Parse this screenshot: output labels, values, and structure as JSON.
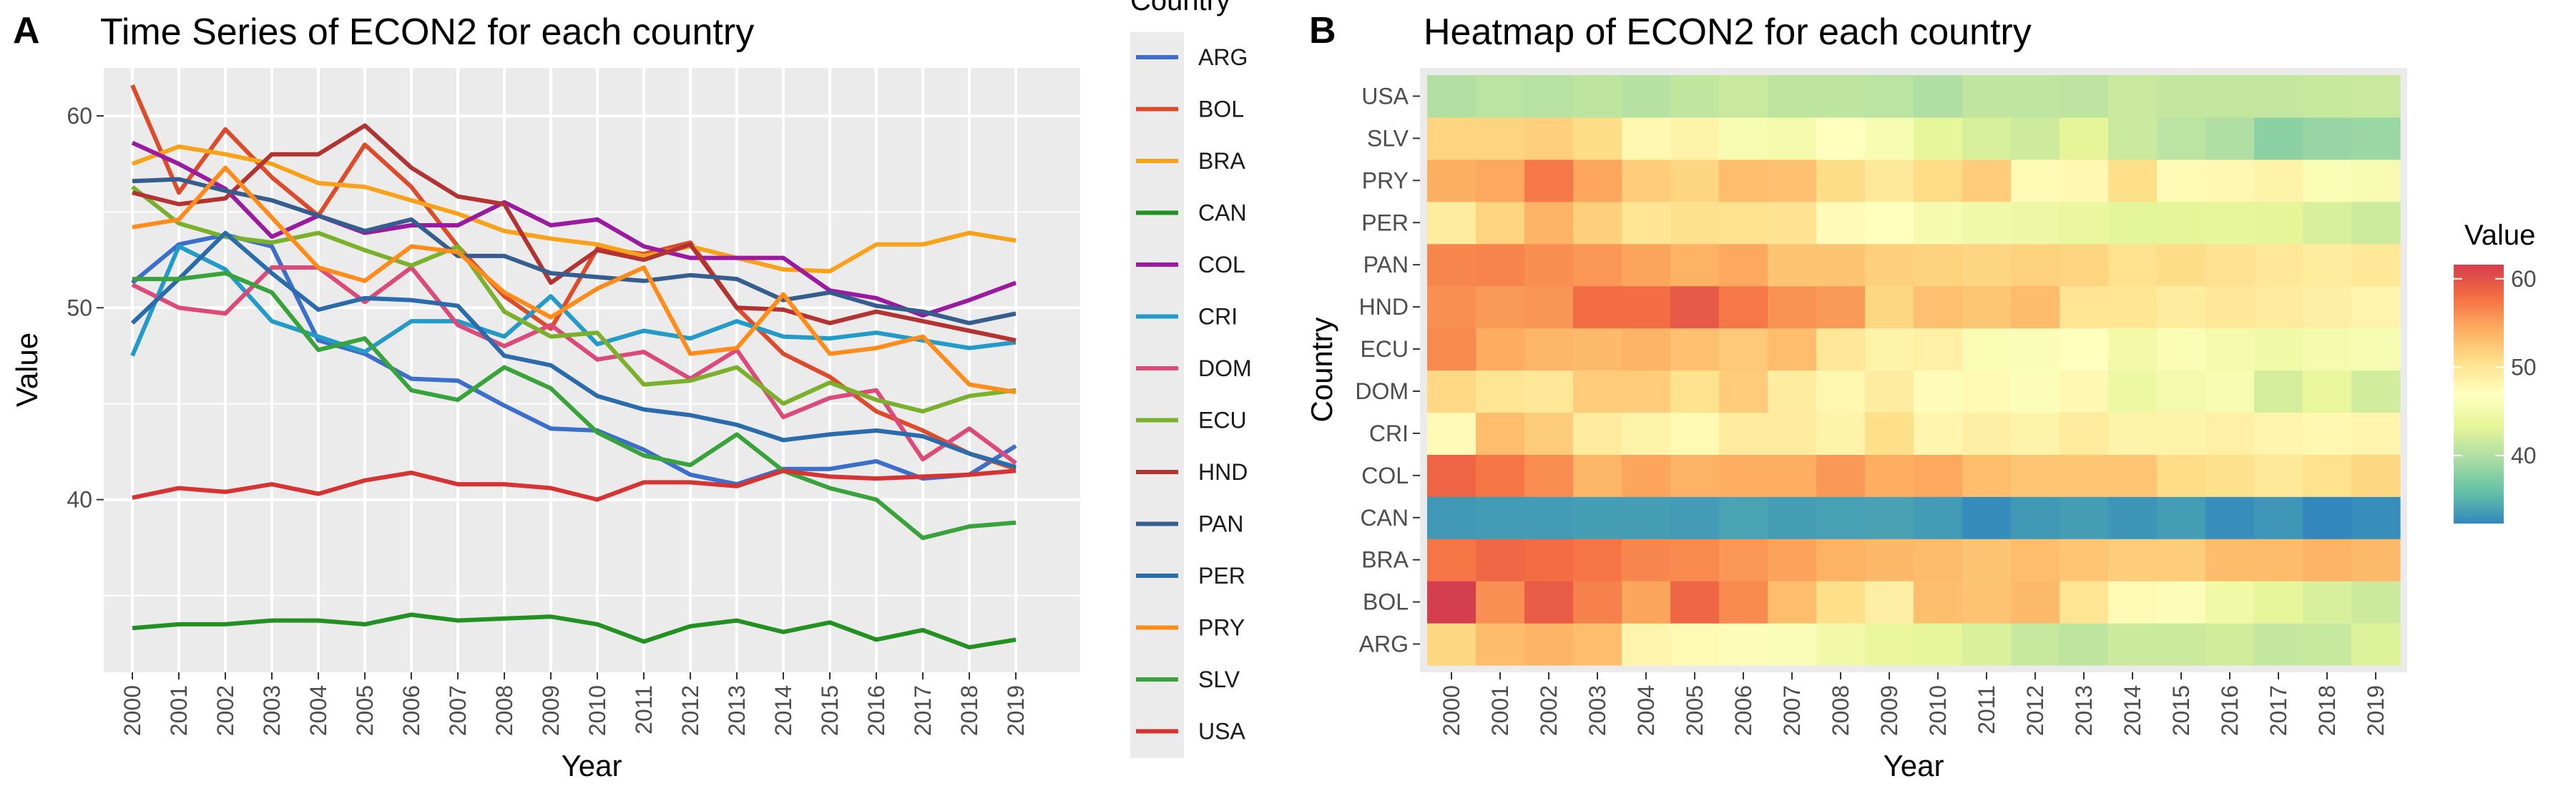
{
  "chart_data": [
    {
      "panel_tag": "A",
      "type": "line",
      "title": "Time Series of ECON2 for each country",
      "xlabel": "Year",
      "ylabel": "Value",
      "x": [
        "2000",
        "2001",
        "2002",
        "2003",
        "2004",
        "2005",
        "2006",
        "2007",
        "2008",
        "2009",
        "2010",
        "2011",
        "2012",
        "2013",
        "2014",
        "2015",
        "2016",
        "2017",
        "2018",
        "2019"
      ],
      "yticks": [
        40,
        50,
        60
      ],
      "ylim": [
        31,
        62.5
      ],
      "grid": true,
      "legend": {
        "title": "Country",
        "placement": "right"
      },
      "series": [
        {
          "name": "ARG",
          "color": "#3b6fcb",
          "values": [
            51.3,
            53.3,
            53.8,
            53.2,
            48.3,
            47.6,
            46.3,
            46.2,
            44.9,
            43.7,
            43.6,
            42.6,
            41.3,
            40.8,
            41.6,
            41.6,
            42.0,
            41.1,
            41.3,
            42.8
          ]
        },
        {
          "name": "BOL",
          "color": "#dc4b2a",
          "values": [
            61.6,
            56.0,
            59.3,
            56.8,
            54.8,
            58.5,
            56.3,
            53.2,
            50.6,
            48.9,
            53.1,
            52.8,
            53.4,
            50.0,
            47.6,
            46.4,
            44.6,
            43.6,
            42.4,
            41.6
          ]
        },
        {
          "name": "BRA",
          "color": "#f8a21a",
          "values": [
            57.5,
            58.4,
            58.0,
            57.5,
            56.5,
            56.3,
            55.6,
            54.9,
            54.0,
            53.6,
            53.3,
            52.7,
            53.2,
            52.6,
            52.0,
            51.9,
            53.3,
            53.3,
            53.9,
            53.5
          ]
        },
        {
          "name": "CAN",
          "color": "#229122",
          "values": [
            33.3,
            33.5,
            33.5,
            33.7,
            33.7,
            33.5,
            34.0,
            33.7,
            33.8,
            33.9,
            33.5,
            32.6,
            33.4,
            33.7,
            33.1,
            33.6,
            32.7,
            33.2,
            32.3,
            32.7
          ]
        },
        {
          "name": "COL",
          "color": "#9a1aa0",
          "values": [
            58.6,
            57.5,
            56.2,
            53.7,
            54.8,
            53.9,
            54.3,
            54.3,
            55.5,
            54.3,
            54.6,
            53.2,
            52.6,
            52.6,
            52.6,
            50.9,
            50.5,
            49.6,
            50.4,
            51.3
          ]
        },
        {
          "name": "CRI",
          "color": "#229bc9",
          "values": [
            47.5,
            53.2,
            52.0,
            49.3,
            48.5,
            47.7,
            49.3,
            49.3,
            48.5,
            50.6,
            48.1,
            48.8,
            48.4,
            49.3,
            48.5,
            48.4,
            48.7,
            48.3,
            47.9,
            48.2
          ]
        },
        {
          "name": "DOM",
          "color": "#dc4a7a",
          "values": [
            51.2,
            50.0,
            49.7,
            52.1,
            52.1,
            50.3,
            52.1,
            49.1,
            48.0,
            49.1,
            47.3,
            47.7,
            46.3,
            47.8,
            44.3,
            45.3,
            45.7,
            42.1,
            43.7,
            41.9
          ]
        },
        {
          "name": "ECU",
          "color": "#7bb02b",
          "values": [
            56.3,
            54.4,
            53.7,
            53.4,
            53.9,
            53.0,
            52.2,
            53.2,
            49.8,
            48.5,
            48.7,
            46.0,
            46.2,
            46.9,
            45.0,
            46.1,
            45.2,
            44.6,
            45.4,
            45.7
          ]
        },
        {
          "name": "HND",
          "color": "#b33333",
          "values": [
            56.0,
            55.4,
            55.7,
            58.0,
            58.0,
            59.5,
            57.3,
            55.8,
            55.4,
            51.3,
            53.0,
            52.5,
            53.3,
            50.0,
            49.9,
            49.2,
            49.8,
            49.3,
            48.8,
            48.3
          ]
        },
        {
          "name": "PAN",
          "color": "#355e8e",
          "values": [
            56.6,
            56.7,
            56.1,
            55.6,
            54.8,
            54.0,
            54.6,
            52.7,
            52.7,
            51.8,
            51.6,
            51.4,
            51.7,
            51.5,
            50.4,
            50.8,
            50.1,
            49.8,
            49.2,
            49.7
          ]
        },
        {
          "name": "PER",
          "color": "#2a6bab",
          "values": [
            49.2,
            51.5,
            53.9,
            51.8,
            49.9,
            50.5,
            50.4,
            50.1,
            47.5,
            47.0,
            45.4,
            44.7,
            44.4,
            43.9,
            43.1,
            43.4,
            43.6,
            43.3,
            42.4,
            41.7
          ]
        },
        {
          "name": "PRY",
          "color": "#ff8c1a",
          "values": [
            54.2,
            54.6,
            57.3,
            54.7,
            52.1,
            51.4,
            53.2,
            52.9,
            50.8,
            49.5,
            51.0,
            52.1,
            47.6,
            47.9,
            50.7,
            47.6,
            47.9,
            48.5,
            46.0,
            45.6
          ]
        },
        {
          "name": "SLV",
          "color": "#38a33a",
          "values": [
            51.5,
            51.5,
            51.8,
            50.8,
            47.8,
            48.4,
            45.7,
            45.2,
            46.9,
            45.8,
            43.5,
            42.3,
            41.8,
            43.4,
            41.5,
            40.6,
            40.0,
            38.0,
            38.6,
            38.8
          ]
        },
        {
          "name": "USA",
          "color": "#d63333",
          "values": [
            40.1,
            40.6,
            40.4,
            40.8,
            40.3,
            41.0,
            41.4,
            40.8,
            40.8,
            40.6,
            40.0,
            40.9,
            40.9,
            40.7,
            41.5,
            41.2,
            41.1,
            41.2,
            41.3,
            41.5
          ]
        }
      ]
    },
    {
      "panel_tag": "B",
      "type": "heatmap",
      "title": "Heatmap of ECON2 for each country",
      "xlabel": "Year",
      "ylabel": "Country",
      "x": [
        "2000",
        "2001",
        "2002",
        "2003",
        "2004",
        "2005",
        "2006",
        "2007",
        "2008",
        "2009",
        "2010",
        "2011",
        "2012",
        "2013",
        "2014",
        "2015",
        "2016",
        "2017",
        "2018",
        "2019"
      ],
      "y": [
        "ARG",
        "BOL",
        "BRA",
        "CAN",
        "COL",
        "CRI",
        "DOM",
        "ECU",
        "HND",
        "PAN",
        "PER",
        "PRY",
        "SLV",
        "USA"
      ],
      "legend": {
        "title": "Value",
        "placement": "right",
        "ticks": [
          40,
          50,
          60
        ],
        "range": [
          32.3,
          61.6
        ]
      },
      "values": [
        [
          51.3,
          53.3,
          53.8,
          53.2,
          48.3,
          47.6,
          46.3,
          46.2,
          44.9,
          43.7,
          43.6,
          42.6,
          41.3,
          40.8,
          41.6,
          41.6,
          42.0,
          41.1,
          41.3,
          42.8
        ],
        [
          61.6,
          56.0,
          59.3,
          56.8,
          54.8,
          58.5,
          56.3,
          53.2,
          50.6,
          48.9,
          53.1,
          52.8,
          53.4,
          50.0,
          47.6,
          46.4,
          44.6,
          43.6,
          42.4,
          41.6
        ],
        [
          57.5,
          58.4,
          58.0,
          57.5,
          56.5,
          56.3,
          55.6,
          54.9,
          54.0,
          53.6,
          53.3,
          52.7,
          53.2,
          52.6,
          52.0,
          51.9,
          53.3,
          53.3,
          53.9,
          53.5
        ],
        [
          33.3,
          33.5,
          33.5,
          33.7,
          33.7,
          33.5,
          34.0,
          33.7,
          33.8,
          33.9,
          33.5,
          32.6,
          33.4,
          33.7,
          33.1,
          33.6,
          32.7,
          33.2,
          32.3,
          32.7
        ],
        [
          58.6,
          57.5,
          56.2,
          53.7,
          54.8,
          53.9,
          54.3,
          54.3,
          55.5,
          54.3,
          54.6,
          53.2,
          52.6,
          52.6,
          52.6,
          50.9,
          50.5,
          49.6,
          50.4,
          51.3
        ],
        [
          47.5,
          53.2,
          52.0,
          49.3,
          48.5,
          47.7,
          49.3,
          49.3,
          48.5,
          50.6,
          48.1,
          48.8,
          48.4,
          49.3,
          48.5,
          48.4,
          48.7,
          48.3,
          47.9,
          48.2
        ],
        [
          51.2,
          50.0,
          49.7,
          52.1,
          52.1,
          50.3,
          52.1,
          49.1,
          48.0,
          49.1,
          47.3,
          47.7,
          46.3,
          47.8,
          44.3,
          45.3,
          45.7,
          42.1,
          43.7,
          41.9
        ],
        [
          56.3,
          54.4,
          53.7,
          53.4,
          53.9,
          53.0,
          52.2,
          53.2,
          49.8,
          48.5,
          48.7,
          46.0,
          46.2,
          46.9,
          45.0,
          46.1,
          45.2,
          44.6,
          45.4,
          45.7
        ],
        [
          56.0,
          55.4,
          55.7,
          58.0,
          58.0,
          59.5,
          57.3,
          55.8,
          55.4,
          51.3,
          53.0,
          52.5,
          53.3,
          50.0,
          49.9,
          49.2,
          49.8,
          49.3,
          48.8,
          48.3
        ],
        [
          56.6,
          56.7,
          56.1,
          55.6,
          54.8,
          54.0,
          54.6,
          52.7,
          52.7,
          51.8,
          51.6,
          51.4,
          51.7,
          51.5,
          50.4,
          50.8,
          50.1,
          49.8,
          49.2,
          49.7
        ],
        [
          49.2,
          51.5,
          53.9,
          51.8,
          49.9,
          50.5,
          50.4,
          50.1,
          47.5,
          47.0,
          45.4,
          44.7,
          44.4,
          43.9,
          43.1,
          43.4,
          43.6,
          43.3,
          42.4,
          41.7
        ],
        [
          54.2,
          54.6,
          57.3,
          54.7,
          52.1,
          51.4,
          53.2,
          52.9,
          50.8,
          49.5,
          51.0,
          52.1,
          47.6,
          47.9,
          50.7,
          47.6,
          47.9,
          48.5,
          46.0,
          45.6
        ],
        [
          51.5,
          51.5,
          51.8,
          50.8,
          47.8,
          48.4,
          45.7,
          45.2,
          46.9,
          45.8,
          43.5,
          42.3,
          41.8,
          43.4,
          41.5,
          40.6,
          40.0,
          38.0,
          38.6,
          38.8
        ],
        [
          40.1,
          40.6,
          40.4,
          40.8,
          40.3,
          41.0,
          41.4,
          40.8,
          40.8,
          40.6,
          40.0,
          40.9,
          40.9,
          40.7,
          41.5,
          41.2,
          41.1,
          41.2,
          41.3,
          41.5
        ]
      ],
      "palette": [
        "#3288bd",
        "#66c2a5",
        "#abdda4",
        "#e6f598",
        "#ffffbf",
        "#fee08b",
        "#fdae61",
        "#f46d43",
        "#d53e4f"
      ]
    }
  ]
}
